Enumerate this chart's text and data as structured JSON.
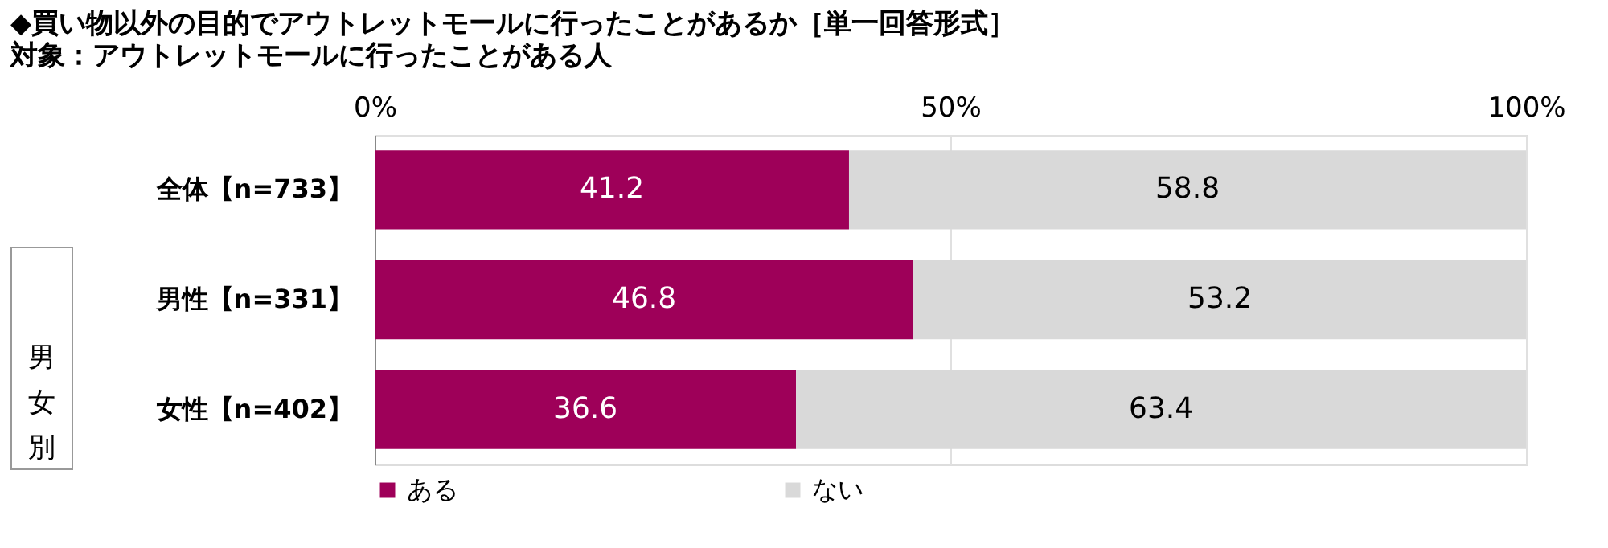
{
  "chart_data": {
    "type": "bar",
    "orientation": "horizontal",
    "stacked": true,
    "title": "◆買い物以外の目的でアウトレットモールに行ったことがあるか［単一回答形式］",
    "subtitle": "対象：アウトレットモールに行ったことがある人",
    "categories": [
      "全体【n=733】",
      "男性【n=331】",
      "女性【n=402】"
    ],
    "series": [
      {
        "name": "ある",
        "color": "#9e0059",
        "values": [
          41.2,
          46.8,
          36.6
        ]
      },
      {
        "name": "ない",
        "color": "#d9d9d9",
        "values": [
          58.8,
          53.2,
          63.4
        ]
      }
    ],
    "xlim": [
      0,
      100
    ],
    "xticks": [
      {
        "value": 0,
        "label": "0%"
      },
      {
        "value": 50,
        "label": "50%"
      },
      {
        "value": 100,
        "label": "100%"
      }
    ],
    "grid": "x",
    "legend": "bottom",
    "data_labels": true,
    "annotations": [
      "男女別"
    ]
  }
}
